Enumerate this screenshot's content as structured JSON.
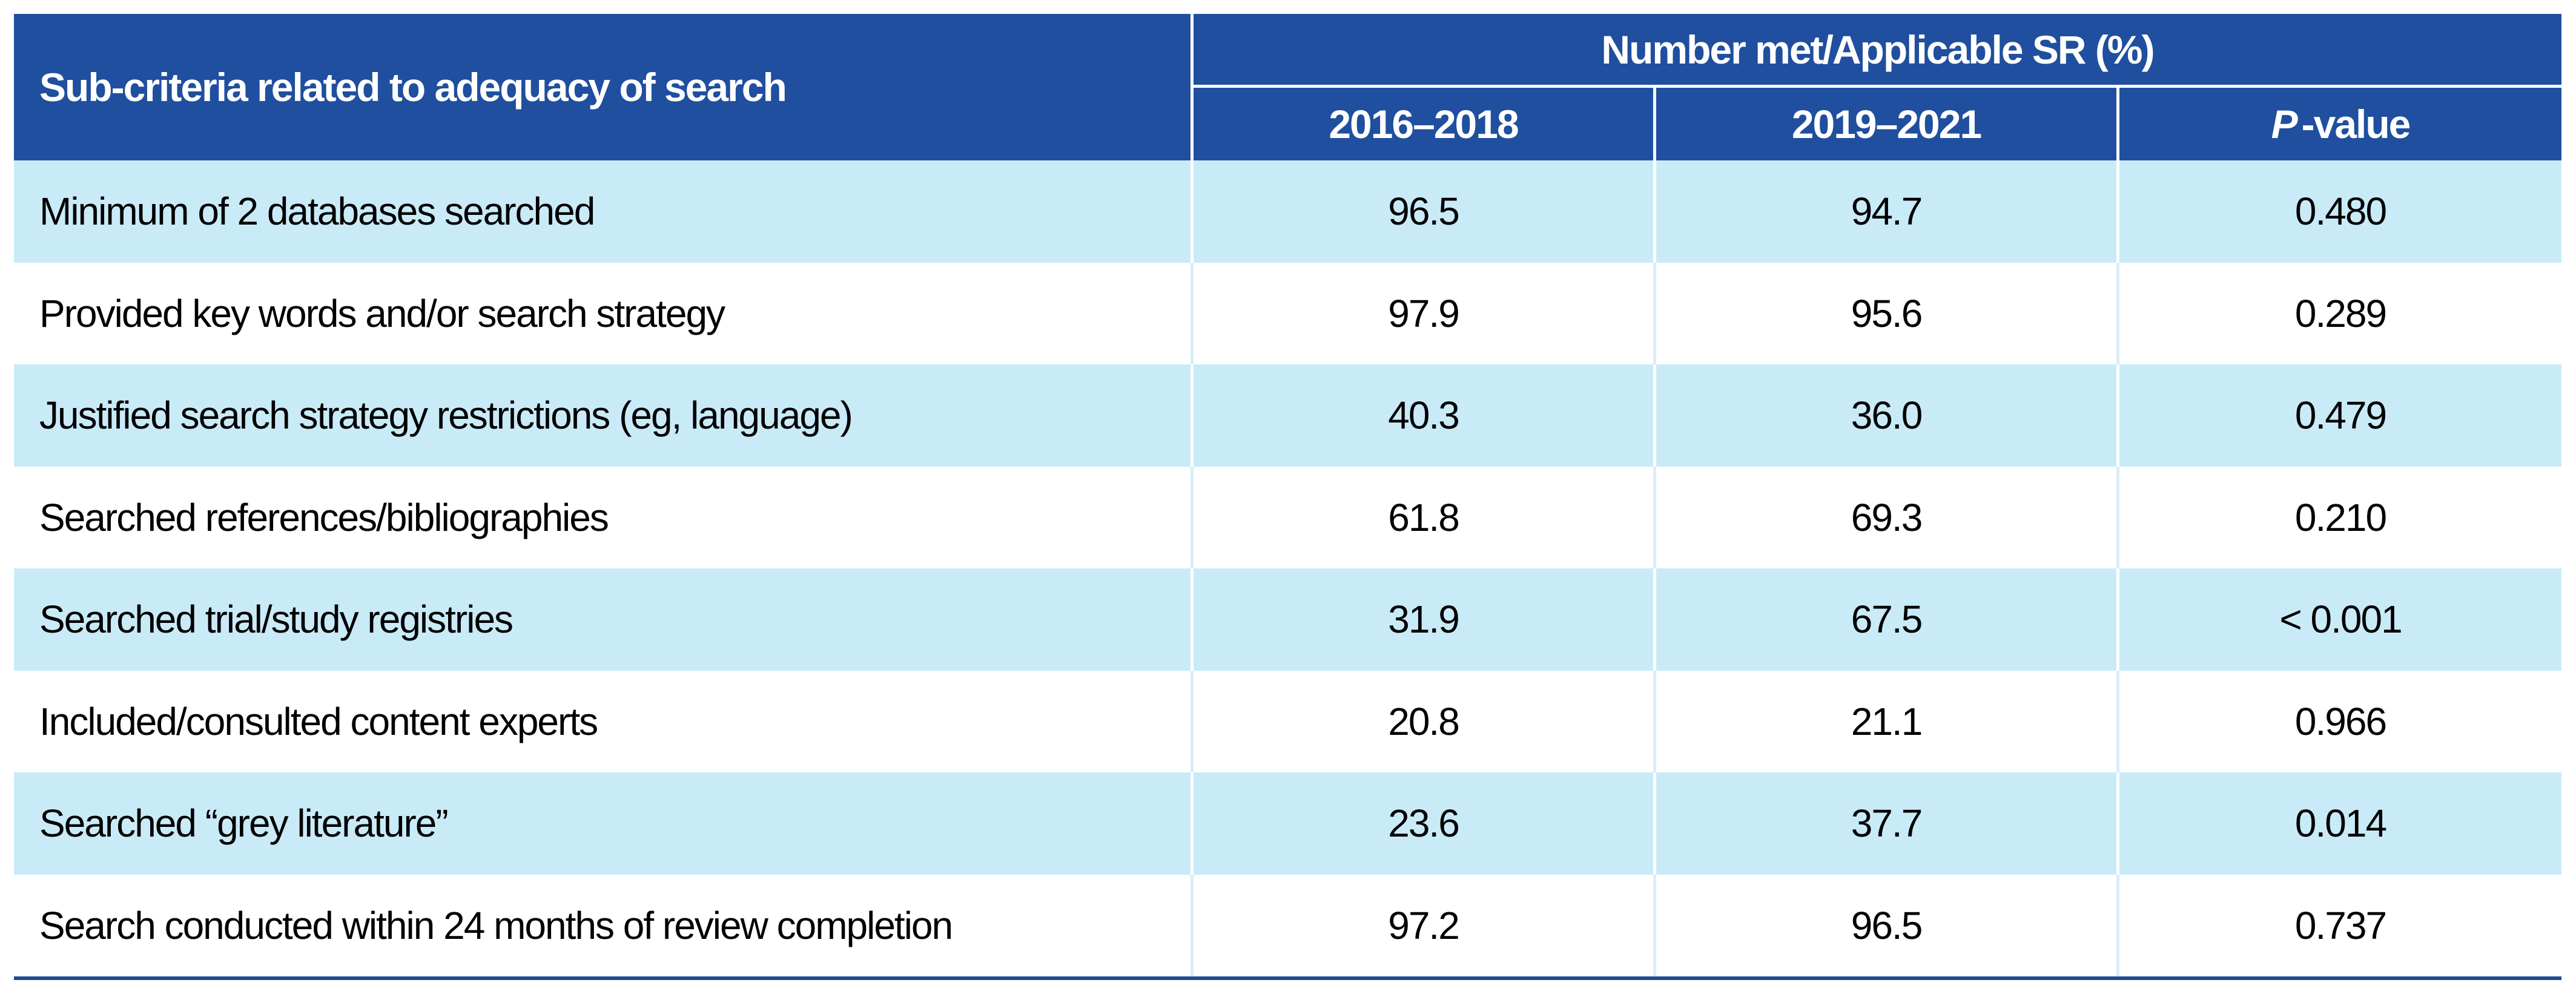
{
  "colors": {
    "header_blue": "#1F4F9E",
    "light_row_blue": "#C9EBF8",
    "pale_separator": "#D9EEF9",
    "bottom_rule": "#1D4C99",
    "text": "#000000",
    "header_text": "#FFFFFF"
  },
  "table": {
    "row_header_label": "Sub-criteria related to adequacy of search",
    "group_header": "Number met/Applicable SR (%)",
    "col_2016_2018": "2016–2018",
    "col_2019_2021": "2019–2021",
    "p_label_italic": "P",
    "p_label_rest": "-value",
    "rows": [
      {
        "label": "Minimum of 2 databases searched",
        "v2016": "96.5",
        "v2019": "94.7",
        "p": "0.480"
      },
      {
        "label": "Provided key words and/or search strategy",
        "v2016": "97.9",
        "v2019": "95.6",
        "p": "0.289"
      },
      {
        "label": "Justified search strategy restrictions (eg, language)",
        "v2016": "40.3",
        "v2019": "36.0",
        "p": "0.479"
      },
      {
        "label": "Searched references/bibliographies",
        "v2016": "61.8",
        "v2019": "69.3",
        "p": "0.210"
      },
      {
        "label": "Searched trial/study registries",
        "v2016": "31.9",
        "v2019": "67.5",
        "p": "< 0.001"
      },
      {
        "label": "Included/consulted content experts",
        "v2016": "20.8",
        "v2019": "21.1",
        "p": "0.966"
      },
      {
        "label": "Searched “grey literature”",
        "v2016": "23.6",
        "v2019": "37.7",
        "p": "0.014"
      },
      {
        "label": "Search conducted within 24 months of review completion",
        "v2016": "97.2",
        "v2019": "96.5",
        "p": "0.737"
      }
    ]
  }
}
